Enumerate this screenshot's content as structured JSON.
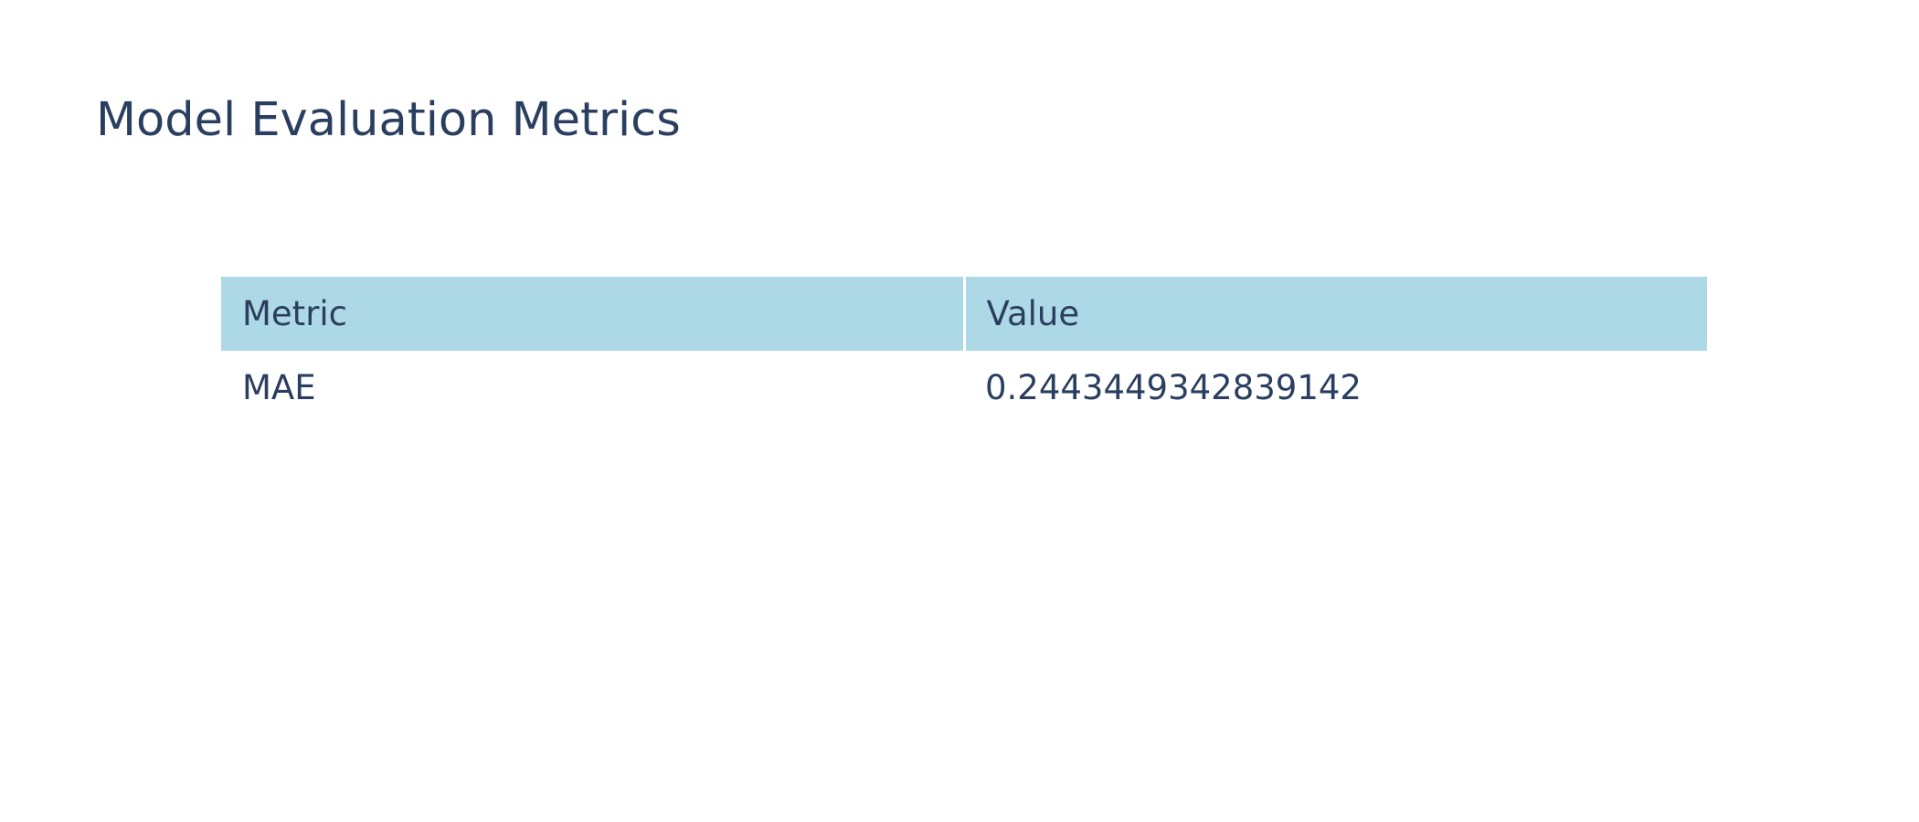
{
  "chart_data": {
    "type": "table",
    "title": "Model Evaluation Metrics",
    "columns": [
      "Metric",
      "Value"
    ],
    "rows": [
      [
        "MAE",
        "0.2443449342839142"
      ]
    ],
    "header_fill": "#add8e6",
    "cell_fill": "#ffffff",
    "font_color": "#2a3f5f"
  }
}
